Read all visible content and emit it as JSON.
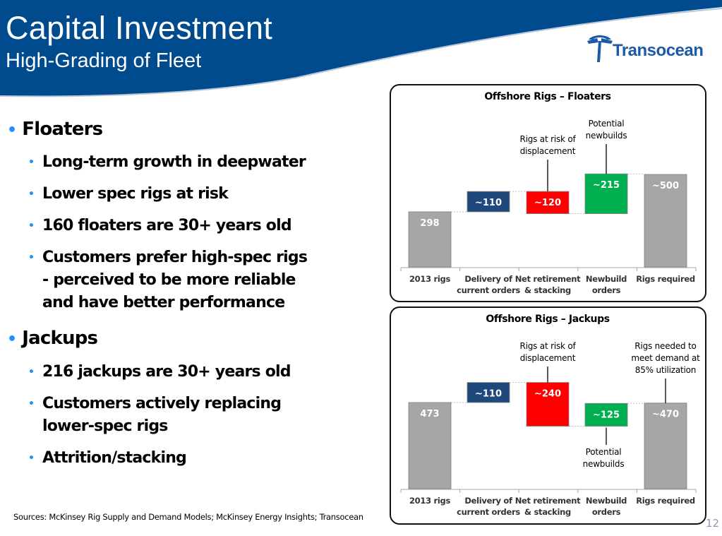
{
  "header": {
    "title": "Capital Investment",
    "subtitle": "High-Grading of Fleet",
    "brand_color": "#004b8d",
    "logo_text": "Transocean"
  },
  "bullets": [
    {
      "label": "Floaters",
      "items": [
        [
          "Long-term growth in deepwater"
        ],
        [
          "Lower spec rigs at risk"
        ],
        [
          "160 floaters are 30+ years old"
        ],
        [
          "Customers prefer high-spec rigs",
          "- perceived to be more reliable",
          "and have better performance"
        ]
      ]
    },
    {
      "label": "Jackups",
      "items": [
        [
          "216 jackups are 30+ years old"
        ],
        [
          "Customers actively replacing",
          "lower-spec rigs"
        ],
        [
          "Attrition/stacking"
        ]
      ]
    }
  ],
  "footer": {
    "sources": "Sources: McKinsey Rig Supply and Demand Models;  McKinsey Energy Insights; Transocean",
    "page_number": "12"
  },
  "colors": {
    "total": "#a6a6a6",
    "delivery": "#1f497d",
    "retirement": "#ff0000",
    "newbuild": "#00b050",
    "bullet": "#1e90ff"
  },
  "chart_data": [
    {
      "type": "bar",
      "subtype": "waterfall",
      "title": "Offshore Rigs – Floaters",
      "categories": [
        [
          "2013 rigs"
        ],
        [
          "Delivery of",
          "current orders"
        ],
        [
          "Net retirement",
          "& stacking"
        ],
        [
          "Newbuild",
          "orders"
        ],
        [
          "Rigs required"
        ]
      ],
      "values": [
        298,
        110,
        -120,
        215,
        500
      ],
      "labels": [
        "298",
        "~110",
        "~120",
        "~215",
        "~500"
      ],
      "kinds": [
        "total",
        "delivery",
        "retirement",
        "newbuild",
        "total"
      ],
      "annotations": [
        {
          "category_index": 2,
          "text": [
            "Rigs at risk of",
            "displacement"
          ],
          "position": "above"
        },
        {
          "category_index": 3,
          "text": [
            "Potential",
            "newbuilds"
          ],
          "position": "above"
        }
      ],
      "xlabel": "",
      "ylabel": "",
      "ylim": [
        0,
        540
      ],
      "grid": false,
      "legend": "none"
    },
    {
      "type": "bar",
      "subtype": "waterfall",
      "title": "Offshore Rigs – Jackups",
      "categories": [
        [
          "2013 rigs"
        ],
        [
          "Delivery of",
          "current orders"
        ],
        [
          "Net retirement",
          "& stacking"
        ],
        [
          "Newbuild",
          "orders"
        ],
        [
          "Rigs required"
        ]
      ],
      "values": [
        473,
        110,
        -240,
        125,
        470
      ],
      "labels": [
        "473",
        "~110",
        "~240",
        "~125",
        "~470"
      ],
      "kinds": [
        "total",
        "delivery",
        "retirement",
        "newbuild",
        "total"
      ],
      "annotations": [
        {
          "category_index": 2,
          "text": [
            "Rigs at risk of",
            "displacement"
          ],
          "position": "above"
        },
        {
          "category_index": 3,
          "text": [
            "Potential",
            "newbuilds"
          ],
          "position": "below"
        },
        {
          "category_index": 4,
          "text": [
            "Rigs needed to",
            "meet demand at",
            "85% utilization"
          ],
          "position": "above"
        }
      ],
      "xlabel": "",
      "ylabel": "",
      "ylim": [
        0,
        620
      ],
      "grid": false,
      "legend": "none"
    }
  ]
}
